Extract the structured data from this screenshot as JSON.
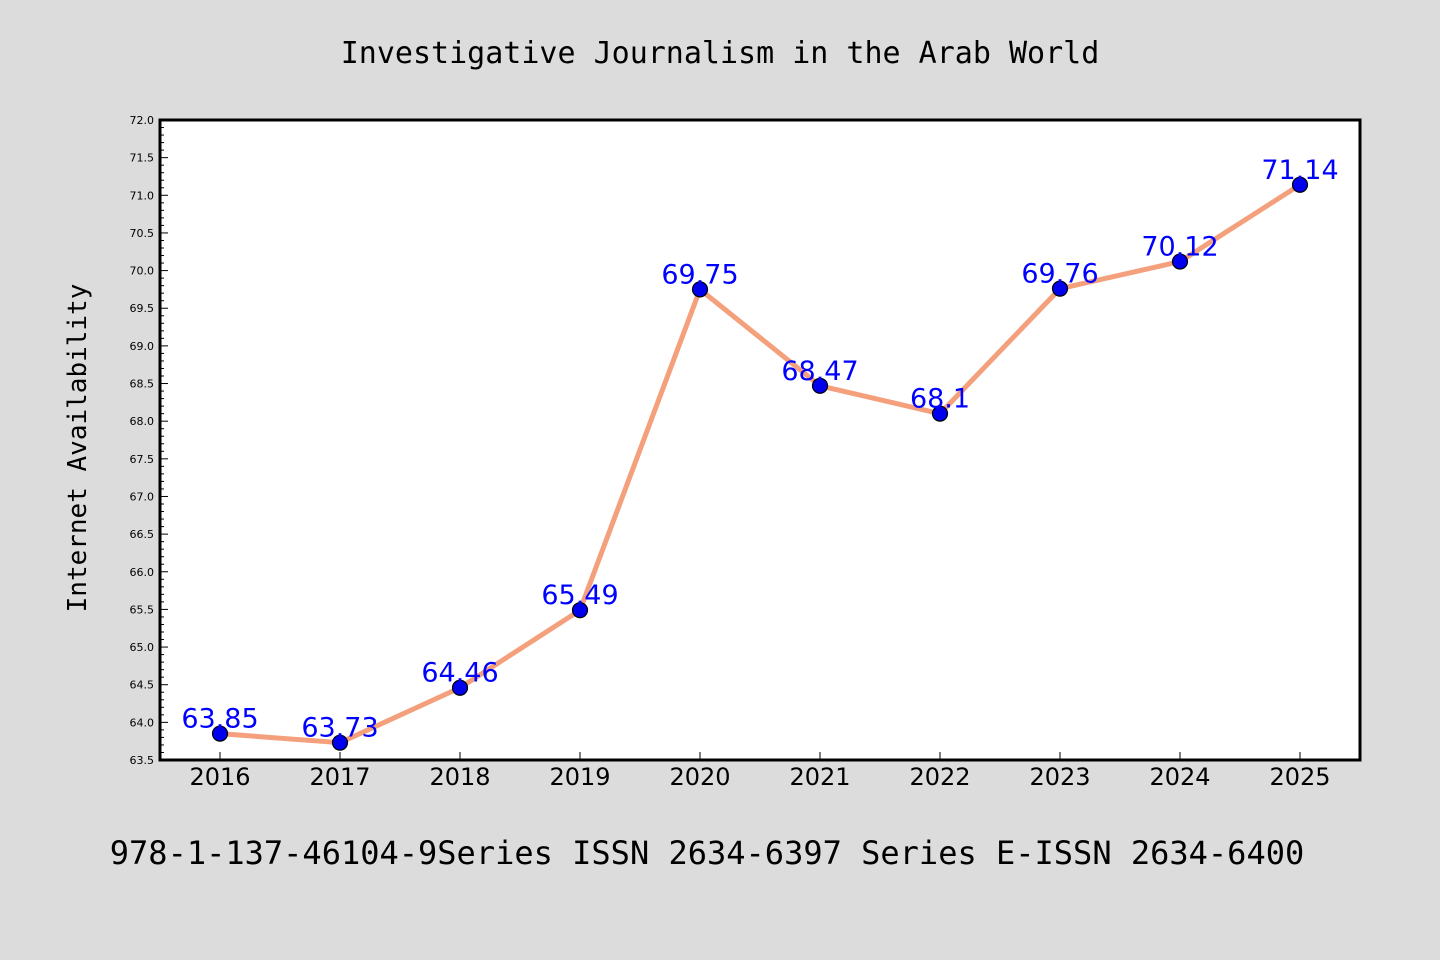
{
  "chart_data": {
    "type": "line",
    "title": "Investigative Journalism in the Arab World",
    "ylabel": "Internet Availability",
    "xlabel": "",
    "categories": [
      "2016",
      "2017",
      "2018",
      "2019",
      "2020",
      "2021",
      "2022",
      "2023",
      "2024",
      "2025"
    ],
    "series": [
      {
        "values": [
          63.85,
          63.73,
          64.46,
          65.49,
          69.75,
          68.47,
          68.1,
          69.76,
          70.12,
          71.14
        ]
      }
    ],
    "data_labels": [
      "63.85",
      "63.73",
      "64.46",
      "65.49",
      "69.75",
      "68.47",
      "68.1",
      "69.76",
      "70.12",
      "71.14"
    ],
    "ylim": [
      63.5,
      72.0
    ],
    "yticks": [
      "63.5",
      "64.0",
      "64.5",
      "65.0",
      "65.5",
      "66.0",
      "66.5",
      "67.0",
      "67.5",
      "68.0",
      "68.5",
      "69.0",
      "69.5",
      "70.0",
      "70.5",
      "71.0",
      "71.5",
      "72.0"
    ],
    "grid": false,
    "legend": "none",
    "colors": {
      "line": "#f4a07c",
      "marker": "#0000ee",
      "data_label": "#0000ff",
      "background": "#dcdcdc",
      "plot_background": "#ffffff"
    }
  },
  "footer": "978-1-137-46104-9Series ISSN 2634-6397 Series E-ISSN 2634-6400"
}
